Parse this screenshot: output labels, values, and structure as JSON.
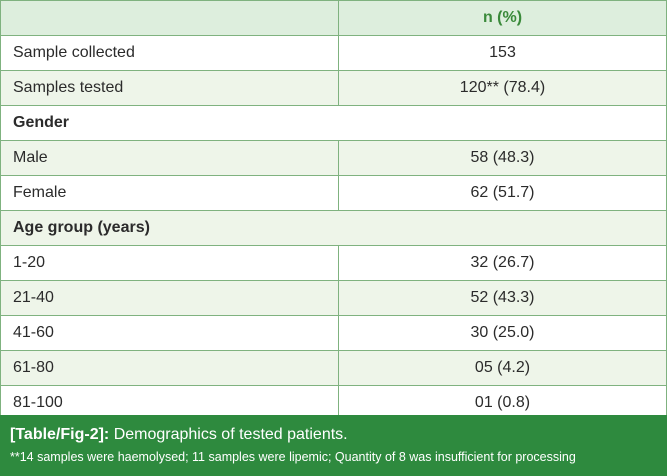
{
  "table": {
    "header": {
      "left": "",
      "right": "n (%)"
    },
    "rows": [
      {
        "label": "Sample collected",
        "value": "153"
      },
      {
        "label": "Samples tested",
        "value": "120** (78.4)"
      },
      {
        "section": "Gender"
      },
      {
        "label": "Male",
        "value": "58 (48.3)"
      },
      {
        "label": "Female",
        "value": "62 (51.7)"
      },
      {
        "section": "Age group (years)"
      },
      {
        "label": "1-20",
        "value": "32 (26.7)"
      },
      {
        "label": "21-40",
        "value": "52 (43.3)"
      },
      {
        "label": "41-60",
        "value": "30 (25.0)"
      },
      {
        "label": "61-80",
        "value": "05 (4.2)"
      },
      {
        "label": "81-100",
        "value": "01 (0.8)"
      }
    ]
  },
  "caption": {
    "ref": "[Table/Fig-2]:",
    "title": "Demographics of tested patients.",
    "note": "**14 samples were haemolysed; 11 samples were lipemic; Quantity of 8 was insufficient for processing"
  },
  "colors": {
    "border": "#7fb27f",
    "header_bg": "#ddeedd",
    "shaded_row": "#eef5e9",
    "caption_bg": "#2e8a3e",
    "header_text": "#3a8a3a"
  }
}
